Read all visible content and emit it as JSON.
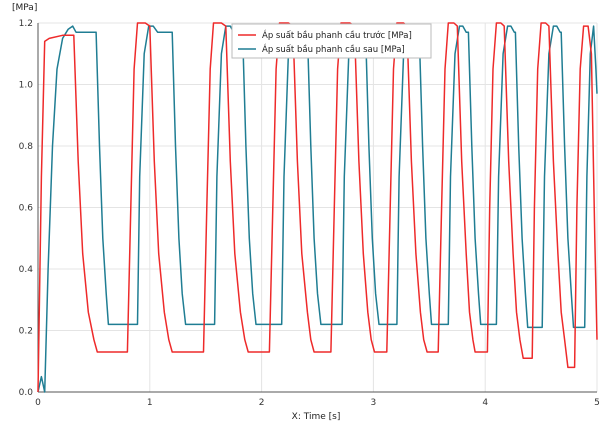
{
  "chart_data": {
    "type": "line",
    "title": "",
    "xlabel": "X: Time [s]",
    "ylabel": "[MPa]",
    "xlim": [
      0,
      5
    ],
    "ylim": [
      0,
      1.2
    ],
    "x_ticks": [
      "0",
      "1",
      "2",
      "3",
      "4",
      "5"
    ],
    "y_ticks": [
      "0.0",
      "0.2",
      "0.4",
      "0.6",
      "0.8",
      "1.0",
      "1.2"
    ],
    "grid": true,
    "legend_position": "top-center",
    "colors": {
      "front": "#ee2a2a",
      "rear": "#1f7d93"
    },
    "series": [
      {
        "name": "Áp suất bầu phanh cầu trước [MPa]",
        "color": "#ee2a2a",
        "points": [
          [
            0.0,
            0.0
          ],
          [
            0.03,
            0.7
          ],
          [
            0.06,
            1.14
          ],
          [
            0.1,
            1.15
          ],
          [
            0.22,
            1.16
          ],
          [
            0.32,
            1.16
          ],
          [
            0.36,
            0.75
          ],
          [
            0.4,
            0.45
          ],
          [
            0.45,
            0.26
          ],
          [
            0.5,
            0.17
          ],
          [
            0.53,
            0.13
          ],
          [
            0.8,
            0.13
          ],
          [
            0.83,
            0.6
          ],
          [
            0.86,
            1.05
          ],
          [
            0.89,
            1.2
          ],
          [
            0.96,
            1.2
          ],
          [
            1.0,
            1.19
          ],
          [
            1.04,
            0.75
          ],
          [
            1.08,
            0.45
          ],
          [
            1.13,
            0.26
          ],
          [
            1.17,
            0.17
          ],
          [
            1.2,
            0.13
          ],
          [
            1.48,
            0.13
          ],
          [
            1.51,
            0.6
          ],
          [
            1.54,
            1.05
          ],
          [
            1.57,
            1.2
          ],
          [
            1.64,
            1.2
          ],
          [
            1.68,
            1.19
          ],
          [
            1.72,
            0.75
          ],
          [
            1.76,
            0.45
          ],
          [
            1.81,
            0.26
          ],
          [
            1.85,
            0.17
          ],
          [
            1.88,
            0.13
          ],
          [
            2.07,
            0.13
          ],
          [
            2.1,
            0.6
          ],
          [
            2.13,
            1.05
          ],
          [
            2.16,
            1.2
          ],
          [
            2.24,
            1.2
          ],
          [
            2.28,
            1.19
          ],
          [
            2.32,
            0.75
          ],
          [
            2.36,
            0.45
          ],
          [
            2.41,
            0.26
          ],
          [
            2.44,
            0.17
          ],
          [
            2.47,
            0.13
          ],
          [
            2.62,
            0.13
          ],
          [
            2.65,
            0.6
          ],
          [
            2.68,
            1.05
          ],
          [
            2.71,
            1.2
          ],
          [
            2.79,
            1.2
          ],
          [
            2.83,
            1.19
          ],
          [
            2.87,
            0.75
          ],
          [
            2.91,
            0.45
          ],
          [
            2.95,
            0.26
          ],
          [
            2.98,
            0.17
          ],
          [
            3.01,
            0.13
          ],
          [
            3.12,
            0.13
          ],
          [
            3.15,
            0.6
          ],
          [
            3.18,
            1.05
          ],
          [
            3.21,
            1.2
          ],
          [
            3.27,
            1.2
          ],
          [
            3.3,
            1.19
          ],
          [
            3.34,
            0.75
          ],
          [
            3.38,
            0.45
          ],
          [
            3.42,
            0.26
          ],
          [
            3.45,
            0.17
          ],
          [
            3.48,
            0.13
          ],
          [
            3.58,
            0.13
          ],
          [
            3.61,
            0.6
          ],
          [
            3.64,
            1.05
          ],
          [
            3.67,
            1.2
          ],
          [
            3.72,
            1.2
          ],
          [
            3.75,
            1.19
          ],
          [
            3.79,
            0.75
          ],
          [
            3.83,
            0.45
          ],
          [
            3.86,
            0.26
          ],
          [
            3.89,
            0.17
          ],
          [
            3.91,
            0.13
          ],
          [
            4.02,
            0.13
          ],
          [
            4.04,
            0.6
          ],
          [
            4.07,
            1.05
          ],
          [
            4.1,
            1.2
          ],
          [
            4.14,
            1.2
          ],
          [
            4.17,
            1.19
          ],
          [
            4.21,
            0.75
          ],
          [
            4.25,
            0.45
          ],
          [
            4.28,
            0.26
          ],
          [
            4.31,
            0.17
          ],
          [
            4.34,
            0.11
          ],
          [
            4.42,
            0.11
          ],
          [
            4.44,
            0.6
          ],
          [
            4.47,
            1.05
          ],
          [
            4.5,
            1.2
          ],
          [
            4.54,
            1.2
          ],
          [
            4.57,
            1.19
          ],
          [
            4.61,
            0.75
          ],
          [
            4.65,
            0.45
          ],
          [
            4.68,
            0.26
          ],
          [
            4.71,
            0.17
          ],
          [
            4.74,
            0.08
          ],
          [
            4.8,
            0.08
          ],
          [
            4.82,
            0.6
          ],
          [
            4.85,
            1.05
          ],
          [
            4.88,
            1.19
          ],
          [
            4.92,
            1.19
          ],
          [
            4.95,
            1.1
          ],
          [
            4.98,
            0.5
          ],
          [
            5.0,
            0.17
          ]
        ]
      },
      {
        "name": "Áp suất bầu phanh cầu sau [MPa]",
        "color": "#1f7d93",
        "points": [
          [
            0.0,
            0.0
          ],
          [
            0.03,
            0.05
          ],
          [
            0.06,
            0.0
          ],
          [
            0.09,
            0.4
          ],
          [
            0.13,
            0.8
          ],
          [
            0.17,
            1.05
          ],
          [
            0.22,
            1.15
          ],
          [
            0.27,
            1.18
          ],
          [
            0.31,
            1.19
          ],
          [
            0.34,
            1.17
          ],
          [
            0.52,
            1.17
          ],
          [
            0.55,
            0.8
          ],
          [
            0.58,
            0.5
          ],
          [
            0.61,
            0.32
          ],
          [
            0.63,
            0.22
          ],
          [
            0.89,
            0.22
          ],
          [
            0.91,
            0.7
          ],
          [
            0.95,
            1.1
          ],
          [
            0.99,
            1.19
          ],
          [
            1.03,
            1.19
          ],
          [
            1.07,
            1.17
          ],
          [
            1.2,
            1.17
          ],
          [
            1.23,
            0.8
          ],
          [
            1.26,
            0.5
          ],
          [
            1.29,
            0.32
          ],
          [
            1.32,
            0.22
          ],
          [
            1.58,
            0.22
          ],
          [
            1.6,
            0.7
          ],
          [
            1.64,
            1.1
          ],
          [
            1.68,
            1.19
          ],
          [
            1.72,
            1.19
          ],
          [
            1.75,
            1.17
          ],
          [
            1.83,
            1.17
          ],
          [
            1.86,
            0.8
          ],
          [
            1.89,
            0.5
          ],
          [
            1.92,
            0.32
          ],
          [
            1.95,
            0.22
          ],
          [
            2.18,
            0.22
          ],
          [
            2.2,
            0.7
          ],
          [
            2.24,
            1.1
          ],
          [
            2.28,
            1.19
          ],
          [
            2.32,
            1.19
          ],
          [
            2.35,
            1.17
          ],
          [
            2.41,
            1.17
          ],
          [
            2.44,
            0.8
          ],
          [
            2.47,
            0.5
          ],
          [
            2.5,
            0.32
          ],
          [
            2.53,
            0.22
          ],
          [
            2.72,
            0.22
          ],
          [
            2.74,
            0.7
          ],
          [
            2.78,
            1.1
          ],
          [
            2.82,
            1.19
          ],
          [
            2.86,
            1.19
          ],
          [
            2.89,
            1.17
          ],
          [
            2.93,
            1.17
          ],
          [
            2.96,
            0.8
          ],
          [
            2.99,
            0.5
          ],
          [
            3.02,
            0.32
          ],
          [
            3.05,
            0.22
          ],
          [
            3.21,
            0.22
          ],
          [
            3.23,
            0.7
          ],
          [
            3.27,
            1.1
          ],
          [
            3.31,
            1.19
          ],
          [
            3.35,
            1.19
          ],
          [
            3.38,
            1.17
          ],
          [
            3.41,
            1.17
          ],
          [
            3.44,
            0.8
          ],
          [
            3.47,
            0.5
          ],
          [
            3.5,
            0.32
          ],
          [
            3.52,
            0.22
          ],
          [
            3.67,
            0.22
          ],
          [
            3.69,
            0.7
          ],
          [
            3.73,
            1.1
          ],
          [
            3.77,
            1.19
          ],
          [
            3.8,
            1.19
          ],
          [
            3.83,
            1.17
          ],
          [
            3.85,
            1.17
          ],
          [
            3.88,
            0.8
          ],
          [
            3.91,
            0.5
          ],
          [
            3.94,
            0.32
          ],
          [
            3.96,
            0.22
          ],
          [
            4.1,
            0.22
          ],
          [
            4.12,
            0.7
          ],
          [
            4.16,
            1.1
          ],
          [
            4.2,
            1.19
          ],
          [
            4.23,
            1.19
          ],
          [
            4.26,
            1.17
          ],
          [
            4.27,
            1.17
          ],
          [
            4.3,
            0.8
          ],
          [
            4.33,
            0.5
          ],
          [
            4.36,
            0.32
          ],
          [
            4.38,
            0.21
          ],
          [
            4.51,
            0.21
          ],
          [
            4.53,
            0.7
          ],
          [
            4.57,
            1.1
          ],
          [
            4.61,
            1.19
          ],
          [
            4.64,
            1.19
          ],
          [
            4.67,
            1.17
          ],
          [
            4.68,
            1.17
          ],
          [
            4.71,
            0.8
          ],
          [
            4.74,
            0.5
          ],
          [
            4.77,
            0.32
          ],
          [
            4.79,
            0.21
          ],
          [
            4.89,
            0.21
          ],
          [
            4.91,
            0.7
          ],
          [
            4.94,
            1.1
          ],
          [
            4.97,
            1.19
          ],
          [
            4.99,
            1.05
          ],
          [
            5.0,
            0.97
          ]
        ]
      }
    ]
  }
}
